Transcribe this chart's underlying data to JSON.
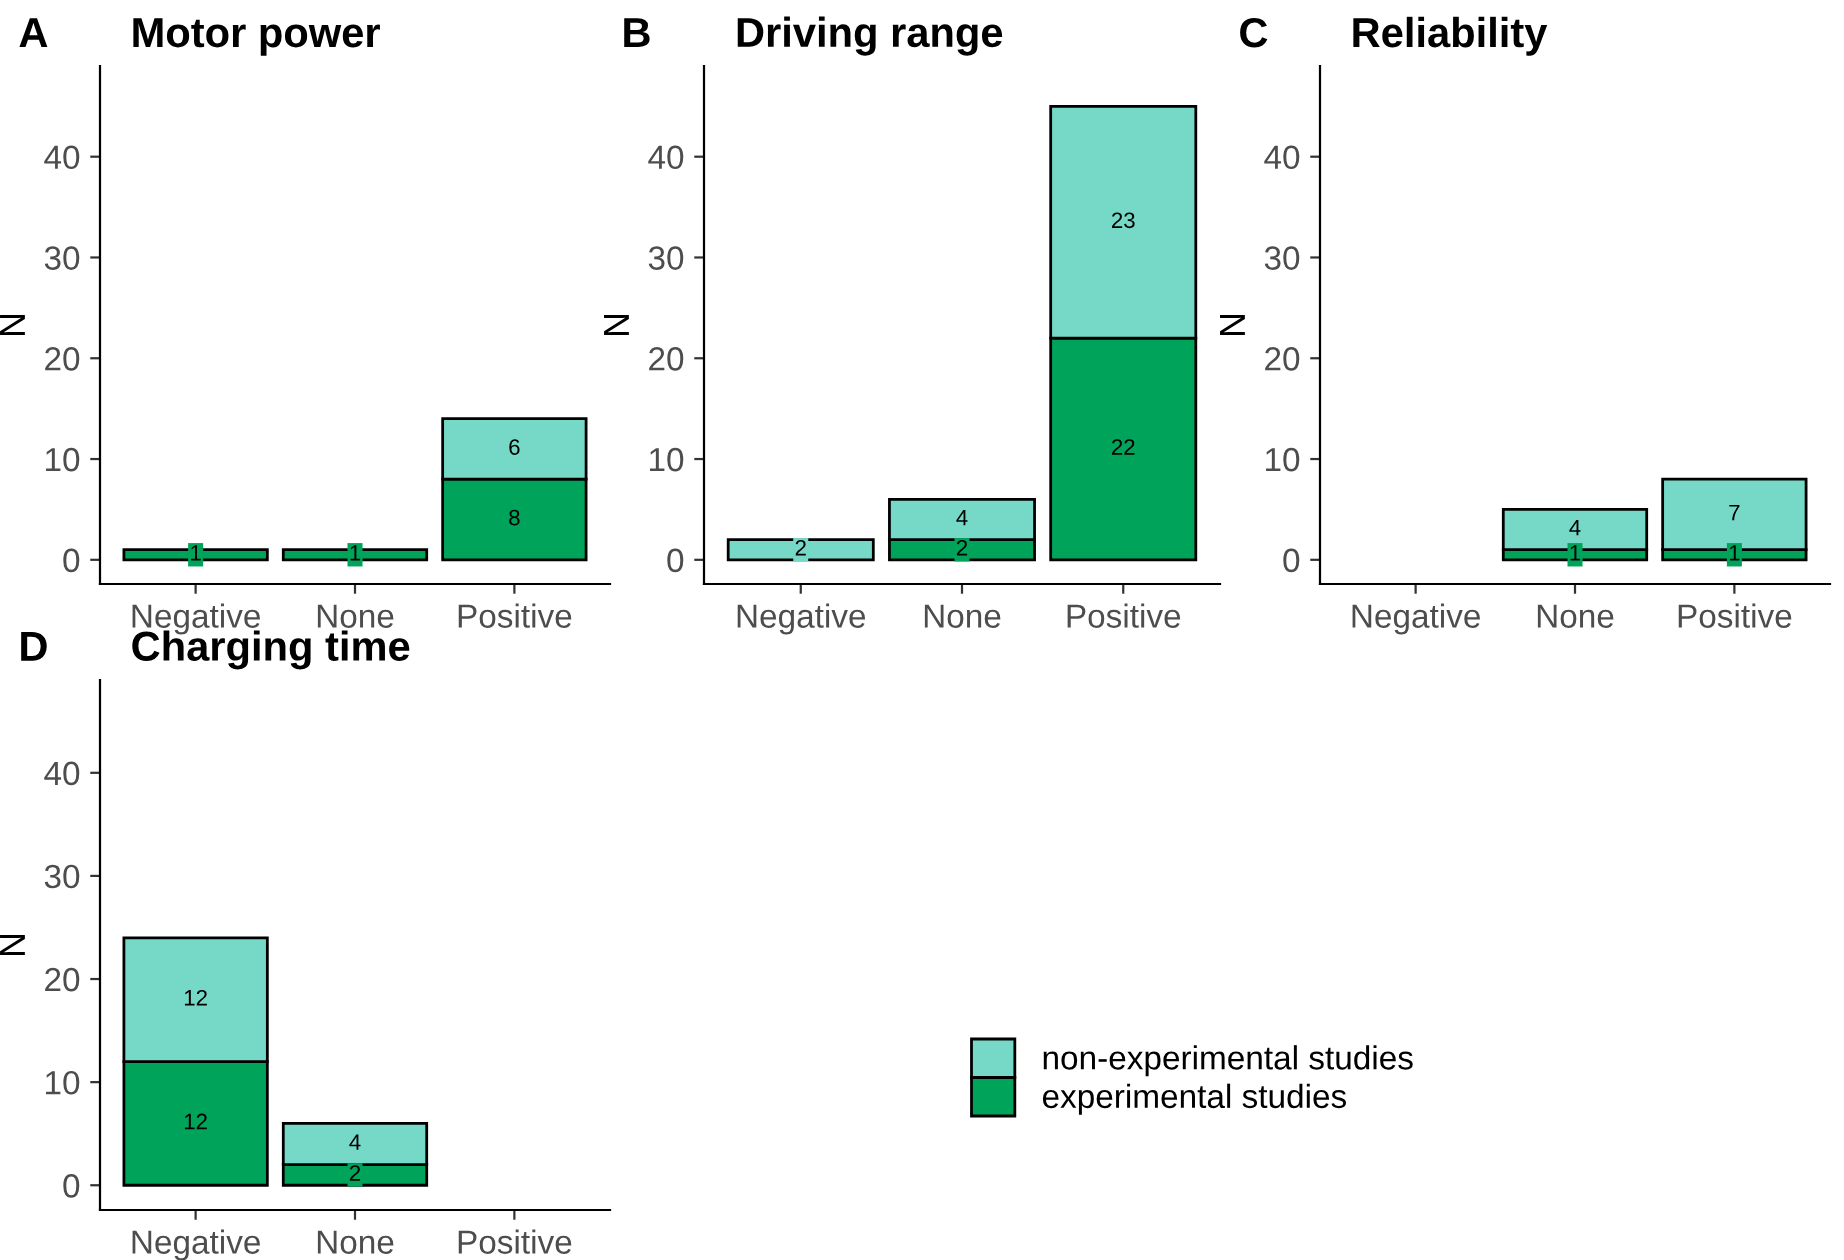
{
  "chart_data": [
    {
      "type": "bar",
      "title": "Motor power",
      "annotations": [
        "A"
      ],
      "ylabel": "N",
      "categories": [
        "Negative",
        "None",
        "Positive"
      ],
      "stacked": true,
      "ylim": [
        -2.4,
        49
      ],
      "yticks": [
        0,
        10,
        20,
        30,
        40
      ],
      "grid": false,
      "series": [
        {
          "color": "#00a35a",
          "values": [
            1,
            1,
            8
          ],
          "value_labels": [
            "1",
            "1",
            "8"
          ]
        },
        {
          "color": "#76d9c8",
          "values": [
            0,
            0,
            6
          ],
          "value_labels": [
            null,
            null,
            "6"
          ]
        }
      ]
    },
    {
      "type": "bar",
      "title": "Driving range",
      "annotations": [
        "B"
      ],
      "ylabel": "N",
      "categories": [
        "Negative",
        "None",
        "Positive"
      ],
      "stacked": true,
      "ylim": [
        -2.4,
        49
      ],
      "yticks": [
        0,
        10,
        20,
        30,
        40
      ],
      "grid": false,
      "series": [
        {
          "color": "#00a35a",
          "values": [
            0,
            2,
            22
          ],
          "value_labels": [
            null,
            "2",
            "22"
          ]
        },
        {
          "color": "#76d9c8",
          "values": [
            2,
            4,
            23
          ],
          "value_labels": [
            "2",
            "4",
            "23"
          ]
        }
      ]
    },
    {
      "type": "bar",
      "title": "Reliability",
      "annotations": [
        "C"
      ],
      "ylabel": "N",
      "categories": [
        "Negative",
        "None",
        "Positive"
      ],
      "stacked": true,
      "ylim": [
        -2.4,
        49
      ],
      "yticks": [
        0,
        10,
        20,
        30,
        40
      ],
      "grid": false,
      "series": [
        {
          "color": "#00a35a",
          "values": [
            0,
            1,
            1
          ],
          "value_labels": [
            null,
            "1",
            "1"
          ]
        },
        {
          "color": "#76d9c8",
          "values": [
            0,
            4,
            7
          ],
          "value_labels": [
            null,
            "4",
            "7"
          ]
        }
      ]
    },
    {
      "type": "bar",
      "title": "Charging time",
      "annotations": [
        "D"
      ],
      "ylabel": "N",
      "categories": [
        "Negative",
        "None",
        "Positive"
      ],
      "stacked": true,
      "ylim": [
        -2.4,
        49
      ],
      "yticks": [
        0,
        10,
        20,
        30,
        40
      ],
      "grid": false,
      "legend": "right",
      "series": [
        {
          "name": "experimental studies",
          "color": "#00a35a",
          "values": [
            12,
            2,
            0
          ],
          "value_labels": [
            "12",
            "2",
            null
          ]
        },
        {
          "name": "non-experimental studies",
          "color": "#76d9c8",
          "values": [
            12,
            4,
            0
          ],
          "value_labels": [
            "12",
            "4",
            null
          ]
        }
      ]
    }
  ]
}
